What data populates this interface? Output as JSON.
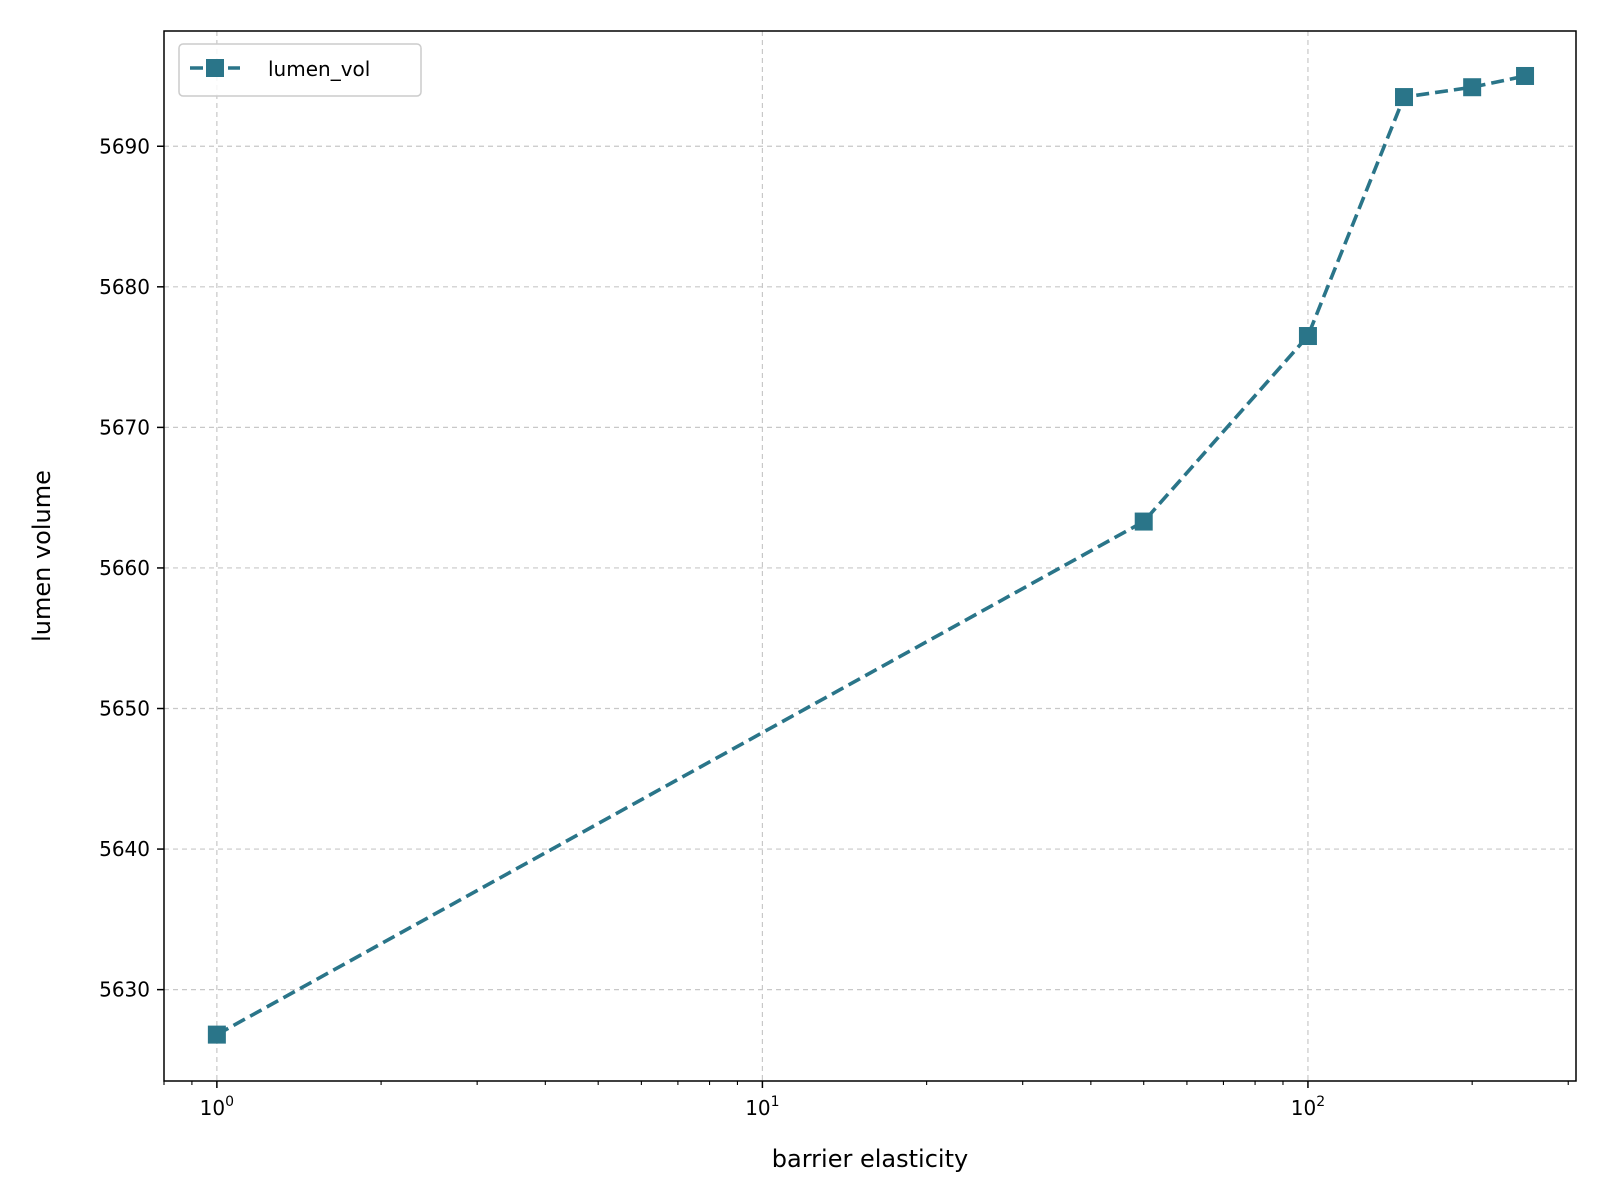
{
  "chart_data": {
    "type": "line",
    "xscale": "log",
    "xlabel": "barrier elasticity",
    "ylabel": "lumen volume",
    "xlim": [
      0.8,
      310
    ],
    "ylim": [
      5623.5,
      5698.2
    ],
    "x_ticks": [
      1,
      10,
      100
    ],
    "x_tick_labels": [
      {
        "base": "10",
        "exp": "0"
      },
      {
        "base": "10",
        "exp": "1"
      },
      {
        "base": "10",
        "exp": "2"
      }
    ],
    "y_ticks": [
      5630,
      5640,
      5650,
      5660,
      5670,
      5680,
      5690
    ],
    "grid": true,
    "legend": {
      "position": "top-left",
      "entries": [
        "lumen_vol"
      ]
    },
    "series": [
      {
        "name": "lumen_vol",
        "color": "#2a7589",
        "line_style": "dashed",
        "marker": "square",
        "x": [
          1,
          50,
          100,
          150,
          200,
          250
        ],
        "y": [
          5626.8,
          5663.3,
          5676.5,
          5693.5,
          5694.2,
          5695.0
        ]
      }
    ]
  }
}
